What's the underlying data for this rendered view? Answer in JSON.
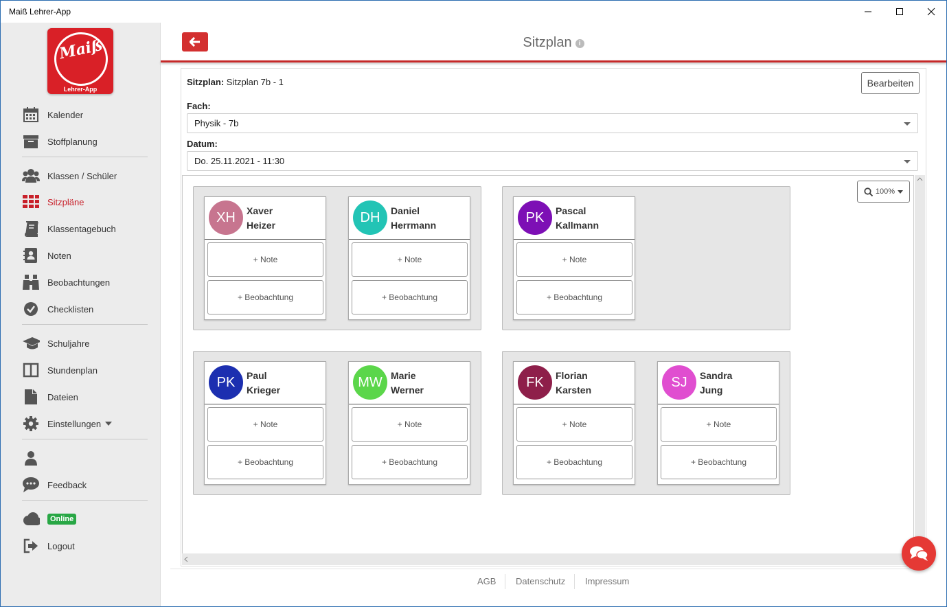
{
  "window": {
    "title": "Maiß Lehrer-App"
  },
  "logo": {
    "script_text": "Maiß",
    "caption": "Lehrer-App"
  },
  "sidebar": {
    "items": [
      {
        "label": "Kalender",
        "icon": "calendar-icon"
      },
      {
        "label": "Stoffplanung",
        "icon": "archive-icon"
      },
      {
        "label": "Klassen / Schüler",
        "icon": "users-icon"
      },
      {
        "label": "Sitzpläne",
        "icon": "grid-icon",
        "active": true
      },
      {
        "label": "Klassentagebuch",
        "icon": "book-icon"
      },
      {
        "label": "Noten",
        "icon": "grade-book-icon"
      },
      {
        "label": "Beobachtungen",
        "icon": "binoculars-icon"
      },
      {
        "label": "Checklisten",
        "icon": "check-circle-icon"
      },
      {
        "label": "Schuljahre",
        "icon": "graduation-cap-icon"
      },
      {
        "label": "Stundenplan",
        "icon": "columns-icon"
      },
      {
        "label": "Dateien",
        "icon": "file-icon"
      },
      {
        "label": "Einstellungen",
        "icon": "gear-icon"
      },
      {
        "label": "",
        "icon": "user-icon"
      },
      {
        "label": "Feedback",
        "icon": "comment-icon"
      },
      {
        "label": "Online",
        "icon": "cloud-icon"
      },
      {
        "label": "Logout",
        "icon": "sign-out-icon"
      }
    ]
  },
  "header": {
    "title": "Sitzplan",
    "back_icon": "arrow-left-icon",
    "info_icon": "info-icon"
  },
  "form": {
    "sitzplan_label": "Sitzplan:",
    "sitzplan_value": "Sitzplan 7b - 1",
    "edit_button": "Bearbeiten",
    "fach_label": "Fach:",
    "fach_value": "Physik - 7b",
    "datum_label": "Datum:",
    "datum_value": "Do. 25.11.2021 - 11:30"
  },
  "zoom": {
    "value": "100%"
  },
  "actions": {
    "note": "+ Note",
    "observation": "+ Beobachtung"
  },
  "students": [
    {
      "initials": "XH",
      "first": "Xaver",
      "last": "Heizer",
      "color": "#c7758f"
    },
    {
      "initials": "DH",
      "first": "Daniel",
      "last": "Herrmann",
      "color": "#22c4b5"
    },
    {
      "initials": "PK",
      "first": "Pascal",
      "last": "Kallmann",
      "color": "#7d0fb5"
    },
    {
      "initials": "PK",
      "first": "Paul",
      "last": "Krieger",
      "color": "#1c2fb0"
    },
    {
      "initials": "MW",
      "first": "Marie",
      "last": "Werner",
      "color": "#5bd64a"
    },
    {
      "initials": "FK",
      "first": "Florian",
      "last": "Karsten",
      "color": "#8e1f4a"
    },
    {
      "initials": "SJ",
      "first": "Sandra",
      "last": "Jung",
      "color": "#e04ed0"
    }
  ],
  "footer": {
    "links": [
      "AGB",
      "Datenschutz",
      "Impressum"
    ]
  },
  "colors": {
    "accent": "#c62828",
    "sidebar_bg": "#ececec",
    "online": "#28a745"
  }
}
